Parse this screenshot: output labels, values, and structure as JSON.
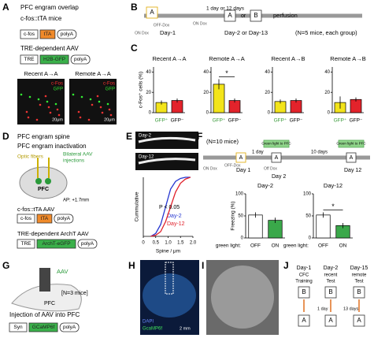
{
  "letters": [
    "A",
    "B",
    "C",
    "D",
    "E",
    "F",
    "G",
    "H",
    "I",
    "J"
  ],
  "A": {
    "title": "PFC engram overlap",
    "mouse": "c-fos::tTA mice",
    "mouse_construct": [
      "c-fos",
      "tTA",
      "polyA"
    ],
    "aav": "TRE-dependent AAV",
    "aav_construct": [
      "TRE",
      "H2B-GFP",
      "polyA"
    ],
    "images": [
      {
        "title": "Recent A→A",
        "stain1": "c-Fos",
        "stain2": "GFP",
        "scale": "20μm"
      },
      {
        "title": "Remote A→A",
        "stain1": "c-Fos",
        "stain2": "GFP",
        "scale": "20μm"
      }
    ]
  },
  "B": {
    "ctx1": "A",
    "on_dox": "ON Dox",
    "off_dox": "OFF-Dox",
    "day1": "Day-1",
    "interval": "1 day or 12 days",
    "on_dox2": "ON Dox",
    "ctx2": "A",
    "or": "or",
    "ctx3": "B",
    "perfusion": "perfusion",
    "day2": "Day-2 or Day-13",
    "n": "(N=5 mice, each group)"
  },
  "D": {
    "title1": "PFC engram spine",
    "title2": "PFC engram inactivation",
    "fibers": "Optic fibers",
    "injection1": "Bilateral AAV",
    "injection2": "injections",
    "region": "PFC",
    "ap": "AP: +1.7mm",
    "aav1": "c-fos::tTA AAV",
    "aav1_construct": [
      "c-fos",
      "tTA",
      "polyA"
    ],
    "aav2": "TRE-dependent ArchT AAV",
    "aav2_construct": [
      "TRE",
      "ArchT-eGFP",
      "polyA"
    ]
  },
  "E": {
    "images": [
      "Day-2",
      "Day-12"
    ]
  },
  "F": {
    "n": "(N=10 mice)",
    "light1": "Green light to PFC",
    "light2": "Green light to PFC",
    "on_dox": "ON Dox",
    "off_dox": "OFF-Dox",
    "off_dox2": "Off Dox",
    "ctx": [
      "A",
      "A",
      "A"
    ],
    "interval1": "1 day",
    "interval2": "10 days",
    "days": [
      "Day 1",
      "Day 2",
      "Day 12"
    ]
  },
  "G": {
    "aav": "AAV",
    "n": "[N=3 mice]",
    "region": "PFC",
    "caption": "Injection of AAV into PFC",
    "construct": [
      "Syn",
      "GCaMP6f",
      "polyA"
    ]
  },
  "H": {
    "stain1": "DAPI",
    "stain2": "GcaMP6f",
    "scale": "2 mm"
  },
  "J": {
    "days": [
      "Day-1",
      "Day-2",
      "Day-15"
    ],
    "phases": [
      [
        "CFC",
        "Training"
      ],
      [
        "recent",
        "Test"
      ],
      [
        "remote",
        "Test"
      ]
    ],
    "top": [
      "B",
      "B",
      "B"
    ],
    "bottom": [
      "A",
      "A",
      "A"
    ],
    "interval1": "1 day",
    "interval2": "13 days"
  },
  "chart_data": [
    {
      "type": "bar",
      "title": "Recent A→A",
      "ylabel": "c-Fos⁺ cells (%)",
      "categories": [
        "GFP⁺",
        "GFP⁻"
      ],
      "values": [
        10,
        12
      ],
      "errors": [
        2,
        2
      ],
      "colors": [
        "#f3e41a",
        "#e3232b"
      ],
      "ylim": [
        0,
        45
      ],
      "yticks": [
        0,
        20,
        40
      ]
    },
    {
      "type": "bar",
      "title": "Remote A→A",
      "categories": [
        "GFP⁺",
        "GFP⁻"
      ],
      "values": [
        28,
        12
      ],
      "errors": [
        5,
        2
      ],
      "colors": [
        "#f3e41a",
        "#e3232b"
      ],
      "ylim": [
        0,
        45
      ],
      "yticks": [
        0,
        20,
        40
      ],
      "annotation": "*"
    },
    {
      "type": "bar",
      "title": "Recent A→B",
      "categories": [
        "GFP⁺",
        "GFP⁻"
      ],
      "values": [
        11,
        12
      ],
      "errors": [
        2,
        2
      ],
      "colors": [
        "#f3e41a",
        "#e3232b"
      ],
      "ylim": [
        0,
        45
      ],
      "yticks": [
        0,
        20,
        40
      ]
    },
    {
      "type": "bar",
      "title": "Remote A→B",
      "categories": [
        "GFP⁺",
        "GFP⁻"
      ],
      "values": [
        10,
        13
      ],
      "errors": [
        6,
        2
      ],
      "colors": [
        "#f3e41a",
        "#e3232b"
      ],
      "ylim": [
        0,
        45
      ],
      "yticks": [
        0,
        20,
        40
      ]
    },
    {
      "type": "line",
      "ylabel": "Cummulative",
      "xlabel": "Spine / μm",
      "annotation": "P < 0.05",
      "xlim": [
        0,
        2
      ],
      "ylim": [
        0,
        1
      ],
      "xticks": [
        0,
        0.5,
        {
          "value": 1,
          "label": "1.0"
        },
        1.5,
        {
          "value": 2,
          "label": "2.0"
        }
      ],
      "x": [
        0.3,
        0.5,
        0.7,
        0.9,
        1.1,
        1.3,
        1.5,
        1.7,
        1.9
      ],
      "series": [
        {
          "name": "Day-2",
          "color": "#2536d0",
          "values": [
            0,
            0.05,
            0.2,
            0.5,
            0.8,
            0.93,
            0.98,
            1,
            1
          ]
        },
        {
          "name": "Day-12",
          "color": "#e0202a",
          "values": [
            0,
            0.02,
            0.08,
            0.25,
            0.5,
            0.75,
            0.9,
            0.97,
            1
          ]
        }
      ]
    },
    {
      "type": "bar",
      "title": "Day-2",
      "ylabel": "Freezing (%)",
      "xlabel": "green light:",
      "categories": [
        "OFF",
        "ON"
      ],
      "values": [
        52,
        40
      ],
      "errors": [
        6,
        6
      ],
      "colors": [
        "#ffffff",
        "#3aa84a"
      ],
      "ylim": [
        0,
        100
      ],
      "yticks": [
        0,
        50,
        100
      ]
    },
    {
      "type": "bar",
      "title": "Day-12",
      "xlabel": "green light:",
      "categories": [
        "OFF",
        "ON"
      ],
      "values": [
        52,
        28
      ],
      "errors": [
        6,
        6
      ],
      "colors": [
        "#ffffff",
        "#3aa84a"
      ],
      "ylim": [
        0,
        100
      ],
      "yticks": [
        0,
        50,
        100
      ],
      "annotation": "*"
    }
  ]
}
